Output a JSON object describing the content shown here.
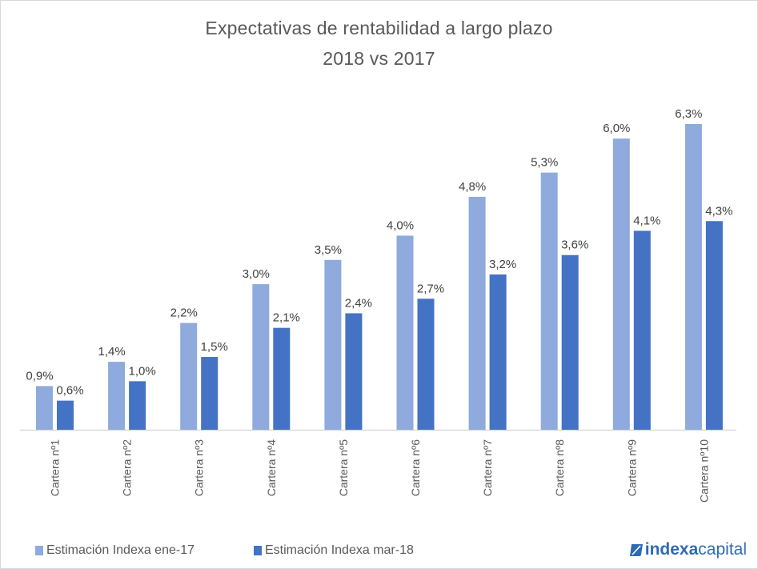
{
  "chart_data": {
    "type": "bar",
    "title": "Expectativas de rentabilidad a largo plazo",
    "subtitle": "2018 vs 2017",
    "xlabel": "",
    "ylabel": "",
    "categories": [
      "Cartera nº1",
      "Cartera nº2",
      "Cartera nº3",
      "Cartera nº4",
      "Cartera nº5",
      "Cartera nº6",
      "Cartera nº7",
      "Cartera nº8",
      "Cartera nº9",
      "Cartera nº10"
    ],
    "series": [
      {
        "name": "Estimación Indexa ene-17",
        "color": "#8faadc",
        "values": [
          0.9,
          1.4,
          2.2,
          3.0,
          3.5,
          4.0,
          4.8,
          5.3,
          6.0,
          6.3
        ],
        "labels": [
          "0,9%",
          "1,4%",
          "2,2%",
          "3,0%",
          "3,5%",
          "4,0%",
          "4,8%",
          "5,3%",
          "6,0%",
          "6,3%"
        ]
      },
      {
        "name": "Estimación Indexa mar-18",
        "color": "#4472c4",
        "values": [
          0.6,
          1.0,
          1.5,
          2.1,
          2.4,
          2.7,
          3.2,
          3.6,
          4.1,
          4.3
        ],
        "labels": [
          "0,6%",
          "1,0%",
          "1,5%",
          "2,1%",
          "2,4%",
          "2,7%",
          "3,2%",
          "3,6%",
          "4,1%",
          "4,3%"
        ]
      }
    ],
    "ylim": [
      0,
      6.3
    ],
    "grid": false,
    "legend_position": "bottom-left"
  },
  "brand": {
    "bold": "indexa",
    "light": "capital",
    "color": "#2e6bb5"
  }
}
